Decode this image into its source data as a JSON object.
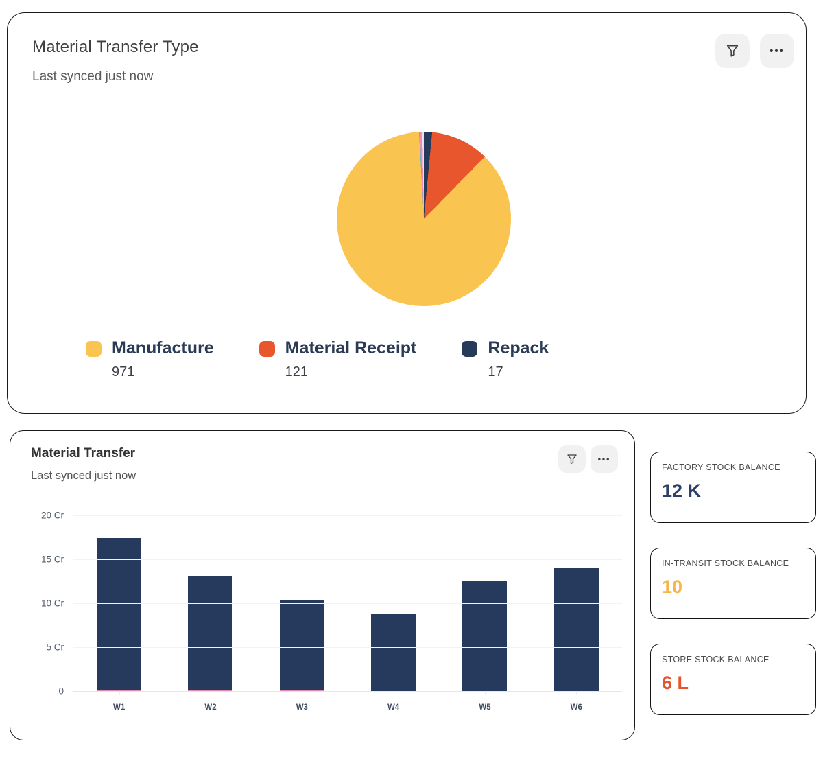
{
  "top_card": {
    "title": "Material Transfer Type",
    "subtitle": "Last synced just now"
  },
  "bar_card": {
    "title": "Material Transfer",
    "subtitle": "Last synced just now"
  },
  "stat_cards": [
    {
      "label": "FACTORY STOCK BALANCE",
      "value": "12 K",
      "value_color": "#2e4169"
    },
    {
      "label": "IN-TRANSIT STOCK BALANCE",
      "value": "10",
      "value_color": "#f6b54b"
    },
    {
      "label": "STORE STOCK BALANCE",
      "value": "6 L",
      "value_color": "#e8532b"
    }
  ],
  "chart_data": [
    {
      "type": "pie",
      "title": "Material Transfer Type",
      "slices": [
        {
          "label": "Manufacture",
          "value": 971,
          "color": "#f9c44f"
        },
        {
          "label": "Material Receipt",
          "value": 121,
          "color": "#e7562c"
        },
        {
          "label": "Repack",
          "value": 17,
          "color": "#263a59"
        }
      ],
      "unlabeled_slices": [
        {
          "value": 2,
          "color": "#7ca6c8"
        },
        {
          "value": 5,
          "color": "#f28cb1"
        },
        {
          "value": 3,
          "color": "#e6e2ee"
        }
      ],
      "draw_order_from_top_clockwise": [
        "Repack",
        "Material Receipt",
        "Manufacture",
        "unlabeled"
      ],
      "legend_position": "bottom"
    },
    {
      "type": "bar",
      "title": "Material Transfer",
      "categories": [
        "W1",
        "W2",
        "W3",
        "W4",
        "W5",
        "W6"
      ],
      "values": [
        17.4,
        13.1,
        10.3,
        8.8,
        12.5,
        14.0
      ],
      "unit": "Cr",
      "ylim": [
        0,
        20
      ],
      "yticks": [
        {
          "value": 20,
          "label": "20 Cr"
        },
        {
          "value": 15,
          "label": "15 Cr"
        },
        {
          "value": 10,
          "label": "10 Cr"
        },
        {
          "value": 5,
          "label": "5 Cr"
        },
        {
          "value": 0,
          "label": "0"
        }
      ],
      "bar_color": "#253a5c",
      "baseline_accent": {
        "categories": [
          "W1",
          "W2",
          "W3"
        ],
        "color": "#de8bad"
      },
      "grid": true,
      "xlabel": "",
      "ylabel": ""
    }
  ]
}
